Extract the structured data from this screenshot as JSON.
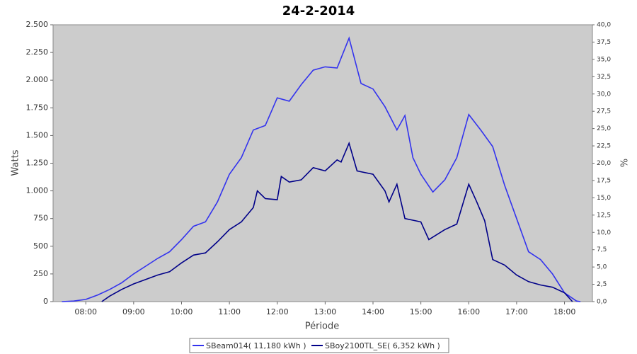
{
  "chart_data": {
    "type": "line",
    "title": "24-2-2014",
    "x_label": "Période",
    "y_label": "Watts",
    "y2_label": "%",
    "xlim": [
      "07:19",
      "18:35"
    ],
    "xticks": [
      "08:00",
      "09:00",
      "10:00",
      "11:00",
      "12:00",
      "13:00",
      "14:00",
      "15:00",
      "16:00",
      "17:00",
      "18:00"
    ],
    "ylim": [
      0,
      2500
    ],
    "yticks": [
      0,
      250,
      500,
      750,
      {
        "value": 1000,
        "label": "1.000"
      },
      {
        "value": 1250,
        "label": "1.250"
      },
      {
        "value": 1500,
        "label": "1.500"
      },
      {
        "value": 1750,
        "label": "1.750"
      },
      {
        "value": 2000,
        "label": "2.000"
      },
      {
        "value": 2250,
        "label": "2.250"
      },
      {
        "value": 2500,
        "label": "2.500"
      }
    ],
    "y2lim": [
      0,
      40
    ],
    "y2ticks": [
      {
        "value": 0,
        "label": "0,0"
      },
      {
        "value": 2.5,
        "label": "2,5"
      },
      {
        "value": 5,
        "label": "5,0"
      },
      {
        "value": 7.5,
        "label": "7,5"
      },
      {
        "value": 10,
        "label": "10,0"
      },
      {
        "value": 12.5,
        "label": "12,5"
      },
      {
        "value": 15,
        "label": "15,0"
      },
      {
        "value": 17.5,
        "label": "17,5"
      },
      {
        "value": 20,
        "label": "20,0"
      },
      {
        "value": 22.5,
        "label": "22,5"
      },
      {
        "value": 25,
        "label": "25,0"
      },
      {
        "value": 27.5,
        "label": "27,5"
      },
      {
        "value": 30,
        "label": "30,0"
      },
      {
        "value": 32.5,
        "label": "32,5"
      },
      {
        "value": 35,
        "label": "35,0"
      },
      {
        "value": 37.5,
        "label": "37,5"
      },
      {
        "value": 40,
        "label": "40,0"
      }
    ],
    "grid": false,
    "legend": "bottom",
    "series": [
      {
        "name": "SBeam014( 11,180 kWh )",
        "color": "#3333ee",
        "x": [
          "07:30",
          "07:45",
          "08:00",
          "08:15",
          "08:30",
          "08:45",
          "09:00",
          "09:15",
          "09:30",
          "09:45",
          "10:00",
          "10:15",
          "10:30",
          "10:45",
          "11:00",
          "11:15",
          "11:30",
          "11:45",
          "12:00",
          "12:15",
          "12:30",
          "12:45",
          "13:00",
          "13:15",
          "13:30",
          "13:45",
          "14:00",
          "14:15",
          "14:30",
          "14:40",
          "14:50",
          "15:00",
          "15:15",
          "15:30",
          "15:45",
          "16:00",
          "16:15",
          "16:30",
          "16:45",
          "17:00",
          "17:15",
          "17:30",
          "17:45",
          "18:00",
          "18:15",
          "18:20"
        ],
        "values": [
          0,
          5,
          20,
          60,
          110,
          170,
          250,
          320,
          390,
          450,
          560,
          680,
          720,
          900,
          1150,
          1300,
          1550,
          1590,
          1840,
          1810,
          1960,
          2090,
          2120,
          2110,
          2380,
          1970,
          1920,
          1760,
          1550,
          1680,
          1300,
          1150,
          990,
          1100,
          1300,
          1690,
          1550,
          1400,
          1050,
          750,
          450,
          380,
          250,
          80,
          5,
          0
        ]
      },
      {
        "name": "SBoy2100TL_SE( 6,352 kWh )",
        "color": "#000088",
        "x": [
          "08:20",
          "08:30",
          "08:45",
          "09:00",
          "09:15",
          "09:30",
          "09:45",
          "10:00",
          "10:15",
          "10:30",
          "10:45",
          "11:00",
          "11:15",
          "11:30",
          "11:35",
          "11:45",
          "12:00",
          "12:05",
          "12:15",
          "12:30",
          "12:45",
          "13:00",
          "13:15",
          "13:20",
          "13:30",
          "13:40",
          "14:00",
          "14:15",
          "14:20",
          "14:30",
          "14:40",
          "15:00",
          "15:10",
          "15:30",
          "15:45",
          "16:00",
          "16:10",
          "16:20",
          "16:30",
          "16:45",
          "17:00",
          "17:15",
          "17:30",
          "17:45",
          "18:00",
          "18:10"
        ],
        "values": [
          0,
          50,
          110,
          160,
          200,
          240,
          270,
          350,
          420,
          440,
          540,
          650,
          720,
          850,
          1000,
          930,
          920,
          1130,
          1080,
          1100,
          1210,
          1180,
          1280,
          1260,
          1430,
          1180,
          1150,
          1000,
          900,
          1060,
          750,
          720,
          560,
          650,
          700,
          1060,
          900,
          730,
          380,
          330,
          240,
          180,
          150,
          130,
          80,
          0
        ]
      }
    ]
  }
}
